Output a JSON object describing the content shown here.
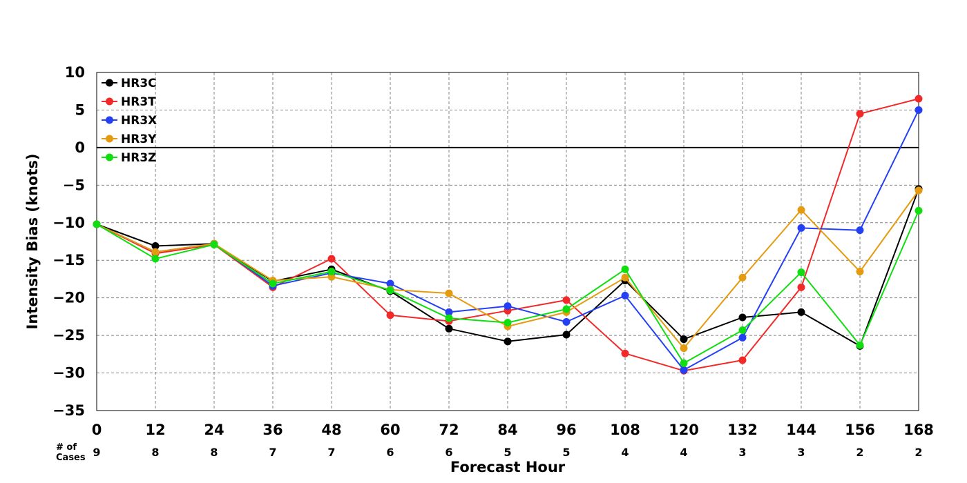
{
  "chart_data": {
    "type": "line",
    "xlabel": "Forecast Hour",
    "ylabel": "Intensity Bias (knots)",
    "ylim": [
      -35,
      10
    ],
    "xlim": [
      0,
      168
    ],
    "grid": true,
    "legend_placement": "top-left",
    "x": [
      0,
      12,
      24,
      36,
      48,
      60,
      72,
      84,
      96,
      108,
      120,
      132,
      144,
      156,
      168
    ],
    "yticks": [
      10,
      5,
      0,
      -5,
      -10,
      -15,
      -20,
      -25,
      -30,
      -35
    ],
    "ytick_labels": [
      "10",
      "5",
      "0",
      "−5",
      "−10",
      "−15",
      "−20",
      "−25",
      "−30",
      "−35"
    ],
    "cases_header": "# of\nCases",
    "cases": [
      "9",
      "8",
      "8",
      "7",
      "7",
      "6",
      "6",
      "5",
      "5",
      "4",
      "4",
      "3",
      "3",
      "2",
      "2"
    ],
    "series": [
      {
        "name": "HR3C",
        "color": "#000000",
        "values": [
          -10.2,
          -13.1,
          -12.8,
          -17.8,
          -16.2,
          -19.1,
          -24.1,
          -25.8,
          -24.9,
          -17.7,
          -25.5,
          -22.6,
          -21.9,
          -26.4,
          -5.5
        ]
      },
      {
        "name": "HR3T",
        "color": "#f22929",
        "values": [
          -10.2,
          -14.1,
          -12.9,
          -18.6,
          -14.8,
          -22.3,
          -23.1,
          -21.7,
          -20.3,
          -27.4,
          -29.7,
          -28.3,
          -18.6,
          4.5,
          6.5
        ]
      },
      {
        "name": "HR3X",
        "color": "#2440f5",
        "values": [
          -10.2,
          -13.9,
          -12.8,
          -18.4,
          -16.7,
          -18.1,
          -21.9,
          -21.1,
          -23.2,
          -19.7,
          -29.6,
          -25.3,
          -10.7,
          -11.0,
          5.0
        ]
      },
      {
        "name": "HR3Y",
        "color": "#e59b0f",
        "values": [
          -10.2,
          -13.9,
          -12.8,
          -17.7,
          -17.2,
          -18.9,
          -19.4,
          -23.8,
          -21.9,
          -17.3,
          -26.7,
          -17.3,
          -8.3,
          -16.5,
          -5.7
        ]
      },
      {
        "name": "HR3Z",
        "color": "#10de10",
        "values": [
          -10.2,
          -14.8,
          -12.9,
          -18.1,
          -16.5,
          -19.0,
          -22.7,
          -23.3,
          -21.5,
          -16.2,
          -28.7,
          -24.3,
          -16.6,
          -26.3,
          -8.4
        ]
      }
    ]
  }
}
